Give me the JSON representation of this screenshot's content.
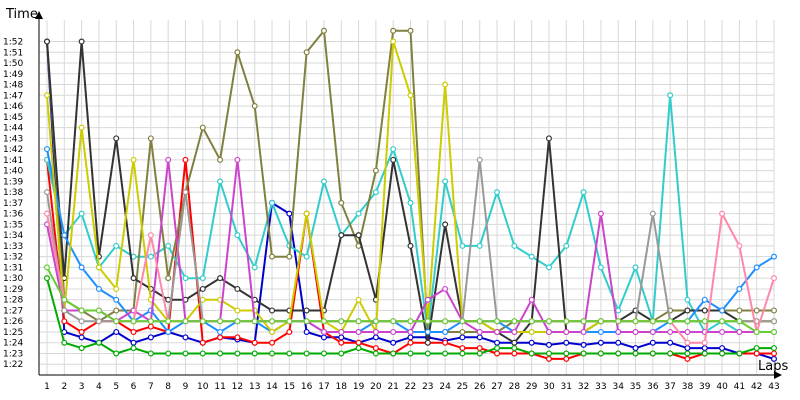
{
  "chart_data": {
    "type": "line",
    "ylabel": "Time",
    "xlabel": "Laps",
    "grid": true,
    "x": [
      1,
      2,
      3,
      4,
      5,
      6,
      7,
      8,
      9,
      10,
      11,
      12,
      13,
      14,
      15,
      16,
      17,
      18,
      19,
      20,
      21,
      22,
      23,
      24,
      25,
      26,
      27,
      28,
      29,
      30,
      31,
      32,
      33,
      34,
      35,
      36,
      37,
      38,
      39,
      40,
      41,
      42,
      43
    ],
    "xlim": [
      1,
      43
    ],
    "ylim_seconds": [
      81,
      114
    ],
    "yticks_seconds": [
      82,
      83,
      84,
      85,
      86,
      87,
      88,
      89,
      90,
      91,
      92,
      93,
      94,
      95,
      96,
      97,
      98,
      99,
      100,
      101,
      102,
      103,
      104,
      105,
      106,
      107,
      108,
      109,
      110,
      111,
      112
    ],
    "yticklabels": [
      "1:22",
      "1:23",
      "1:24",
      "1:25",
      "1:26",
      "1:27",
      "1:28",
      "1:29",
      "1:30",
      "1:31",
      "1:32",
      "1:33",
      "1:34",
      "1:35",
      "1:36",
      "1:37",
      "1:38",
      "1:39",
      "1:40",
      "1:41",
      "1:42",
      "1:43",
      "1:44",
      "1:45",
      "1:46",
      "1:47",
      "1:48",
      "1:49",
      "1:50",
      "1:51",
      "1:52"
    ],
    "series": [
      {
        "color": "#0000cc",
        "values": [
          112,
          85,
          84.5,
          84,
          85,
          84,
          84.5,
          85,
          84.5,
          84,
          84.5,
          84.3,
          84,
          97,
          96,
          85,
          84.5,
          84.5,
          84,
          84.5,
          84,
          84.5,
          84.5,
          84.2,
          84.5,
          84.5,
          84,
          84,
          84,
          83.8,
          84,
          83.8,
          84,
          84,
          83.5,
          84,
          84,
          83.5,
          83.5,
          83.5,
          83,
          83,
          82.5
        ]
      },
      {
        "color": "#ff0000",
        "values": [
          101,
          86,
          85,
          86,
          86,
          85,
          85.5,
          85,
          101,
          84,
          84.5,
          84.5,
          84,
          84,
          85,
          96,
          85,
          84,
          84,
          83.5,
          83,
          84,
          84,
          84,
          83.5,
          83.5,
          83,
          83,
          83,
          82.5,
          82.5,
          83,
          83,
          83,
          83,
          83,
          83,
          82.5,
          83,
          83,
          83,
          83,
          83
        ]
      },
      {
        "color": "#00aa00",
        "values": [
          90,
          84,
          83.5,
          84,
          83,
          83.5,
          83,
          83,
          83,
          83,
          83,
          83,
          83,
          83,
          83,
          83,
          83,
          83,
          83.5,
          83,
          83,
          83,
          83,
          83,
          83,
          83,
          83.5,
          83.5,
          83,
          83,
          83,
          83,
          83,
          83,
          83,
          83,
          83,
          83,
          83,
          83,
          83,
          83.5,
          83.5
        ]
      },
      {
        "color": "#33cccc",
        "values": [
          101,
          94,
          96,
          91,
          93,
          92,
          92,
          93,
          90,
          90,
          99,
          94,
          91,
          97,
          93,
          92,
          99,
          94,
          96,
          98,
          102,
          97,
          85,
          99,
          93,
          93,
          98,
          93,
          92,
          91,
          93,
          98,
          91,
          87,
          91,
          86,
          107,
          88,
          85,
          86,
          85,
          85,
          85
        ]
      },
      {
        "color": "#808040",
        "values": [
          112,
          88,
          87,
          86,
          87,
          87,
          103,
          90,
          98,
          104,
          101,
          111,
          106,
          92,
          92,
          111,
          113,
          97,
          93,
          100,
          113,
          113,
          85,
          85,
          85,
          85,
          85,
          86,
          86,
          86,
          86,
          86,
          86,
          86,
          86,
          86,
          87,
          87,
          87,
          87,
          87,
          87,
          87
        ]
      },
      {
        "color": "#333333",
        "values": [
          112,
          90,
          112,
          92,
          103,
          90,
          89,
          88,
          88,
          89,
          90,
          89,
          88,
          87,
          87,
          87,
          87,
          94,
          94,
          88,
          101,
          93,
          84,
          95,
          86,
          86,
          85,
          84,
          86,
          103,
          85,
          85,
          86,
          86,
          87,
          86,
          86,
          87,
          87,
          87,
          86,
          86,
          86
        ]
      },
      {
        "color": "#1e90ff",
        "values": [
          102,
          94,
          91,
          89,
          88,
          86,
          87,
          85,
          86,
          86,
          85,
          86,
          86,
          85,
          86,
          86,
          85,
          85,
          85,
          86,
          86,
          85,
          85,
          85,
          86,
          86,
          86,
          85,
          85,
          85,
          85,
          85,
          85,
          85,
          85,
          85,
          86,
          86,
          88,
          87,
          89,
          91,
          92
        ]
      },
      {
        "color": "#cccc00",
        "values": [
          107,
          87,
          104,
          91,
          89,
          101,
          88,
          86,
          86,
          88,
          88,
          87,
          87,
          85,
          86,
          96,
          86,
          85,
          88,
          85,
          112,
          107,
          86,
          108,
          86,
          86,
          85,
          85,
          85,
          85,
          85,
          85,
          86,
          86,
          86,
          86,
          86,
          86,
          86,
          86,
          86,
          86,
          86
        ]
      },
      {
        "color": "#cc44cc",
        "values": [
          95,
          87,
          87,
          87,
          86,
          87,
          86,
          101,
          86,
          86,
          86,
          101,
          86,
          86,
          86,
          86,
          85,
          85,
          85,
          85,
          85,
          85,
          88,
          89,
          86,
          85,
          85,
          85,
          88,
          85,
          85,
          85,
          96,
          85,
          85,
          85,
          85,
          85,
          85,
          85,
          85,
          85,
          85
        ]
      },
      {
        "color": "#999999",
        "values": [
          98,
          87,
          86,
          86,
          86,
          86,
          86,
          86,
          98,
          86,
          86,
          86,
          86,
          86,
          86,
          86,
          86,
          86,
          86,
          86,
          86,
          86,
          86,
          86,
          86,
          101,
          86,
          86,
          86,
          86,
          86,
          86,
          86,
          86,
          86,
          96,
          86,
          86,
          86,
          86,
          86,
          86,
          86
        ]
      },
      {
        "color": "#ff88aa",
        "values": [
          96,
          88,
          87,
          87,
          86,
          86,
          94,
          86,
          86,
          86,
          86,
          86,
          86,
          86,
          86,
          86,
          86,
          86,
          86,
          86,
          86,
          86,
          86,
          86,
          86,
          86,
          86,
          86,
          86,
          86,
          86,
          86,
          86,
          86,
          86,
          86,
          86,
          84,
          84,
          96,
          93,
          85,
          90
        ]
      },
      {
        "color": "#66cc33",
        "values": [
          91,
          88,
          87,
          87,
          86,
          86,
          86,
          86,
          86,
          86,
          86,
          86,
          86,
          86,
          86,
          86,
          86,
          86,
          86,
          86,
          86,
          86,
          86,
          86,
          86,
          86,
          86,
          86,
          86,
          86,
          86,
          86,
          86,
          86,
          86,
          86,
          86,
          86,
          86,
          86,
          86,
          85,
          85
        ]
      }
    ]
  }
}
